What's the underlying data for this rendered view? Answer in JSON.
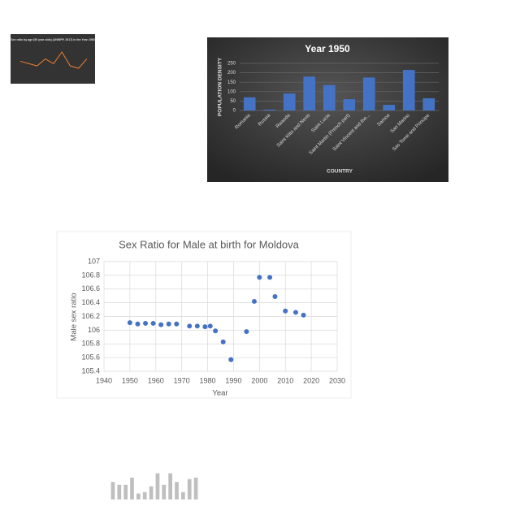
{
  "chart_data": [
    {
      "type": "line",
      "title": "Sex ratio by age (50 year olds) (UNWPP, 2017) in the Year 1965",
      "color": "#ed7d31",
      "values": [
        0.98,
        0.97,
        0.96,
        0.99,
        0.97,
        1.02,
        0.96,
        0.95,
        0.99
      ]
    },
    {
      "type": "bar",
      "title": "Year 1950",
      "color": "#4472c4",
      "grid": true,
      "x_label": "COUNTRY",
      "y_label": "POPULATION DENSITY",
      "categories": [
        "Romania",
        "Russia",
        "Rwanda",
        "Saint Kitts and Nevis",
        "Saint Lucia",
        "Saint Martin (French part)",
        "Saint Vincent and the...",
        "Samoa",
        "San Marino",
        "Sao Tome and Principe"
      ],
      "values": [
        70,
        5,
        90,
        180,
        135,
        60,
        175,
        30,
        215,
        65
      ],
      "ylim": [
        0,
        250
      ],
      "yticks": [
        0,
        50,
        100,
        150,
        200,
        250
      ]
    },
    {
      "type": "scatter",
      "title": "Sex Ratio for Male at birth for Moldova",
      "color": "#4472c4",
      "grid": true,
      "x_label": "Year",
      "y_label": "Male sex ratio",
      "x": [
        1950,
        1953,
        1956,
        1959,
        1962,
        1965,
        1968,
        1973,
        1976,
        1979,
        1981,
        1983,
        1986,
        1989,
        1995,
        1998,
        2000,
        2004,
        2006,
        2010,
        2014,
        2017
      ],
      "values": [
        106.11,
        106.09,
        106.1,
        106.1,
        106.08,
        106.09,
        106.09,
        106.06,
        106.06,
        106.05,
        106.06,
        105.99,
        105.83,
        105.57,
        105.98,
        106.42,
        106.77,
        106.77,
        106.49,
        106.28,
        106.26,
        106.22
      ],
      "xlim": [
        1940,
        2030
      ],
      "xticks": [
        1940,
        1950,
        1960,
        1970,
        1980,
        1990,
        2000,
        2010,
        2020,
        2030
      ],
      "ylim": [
        105.4,
        107
      ],
      "yticks": [
        105.4,
        105.6,
        105.8,
        106,
        106.2,
        106.4,
        106.6,
        106.8,
        107
      ]
    },
    {
      "type": "bar",
      "color": "#bfbfbf",
      "values": [
        60,
        50,
        50,
        75,
        20,
        25,
        45,
        90,
        50,
        90,
        60,
        25,
        70,
        75
      ]
    }
  ]
}
